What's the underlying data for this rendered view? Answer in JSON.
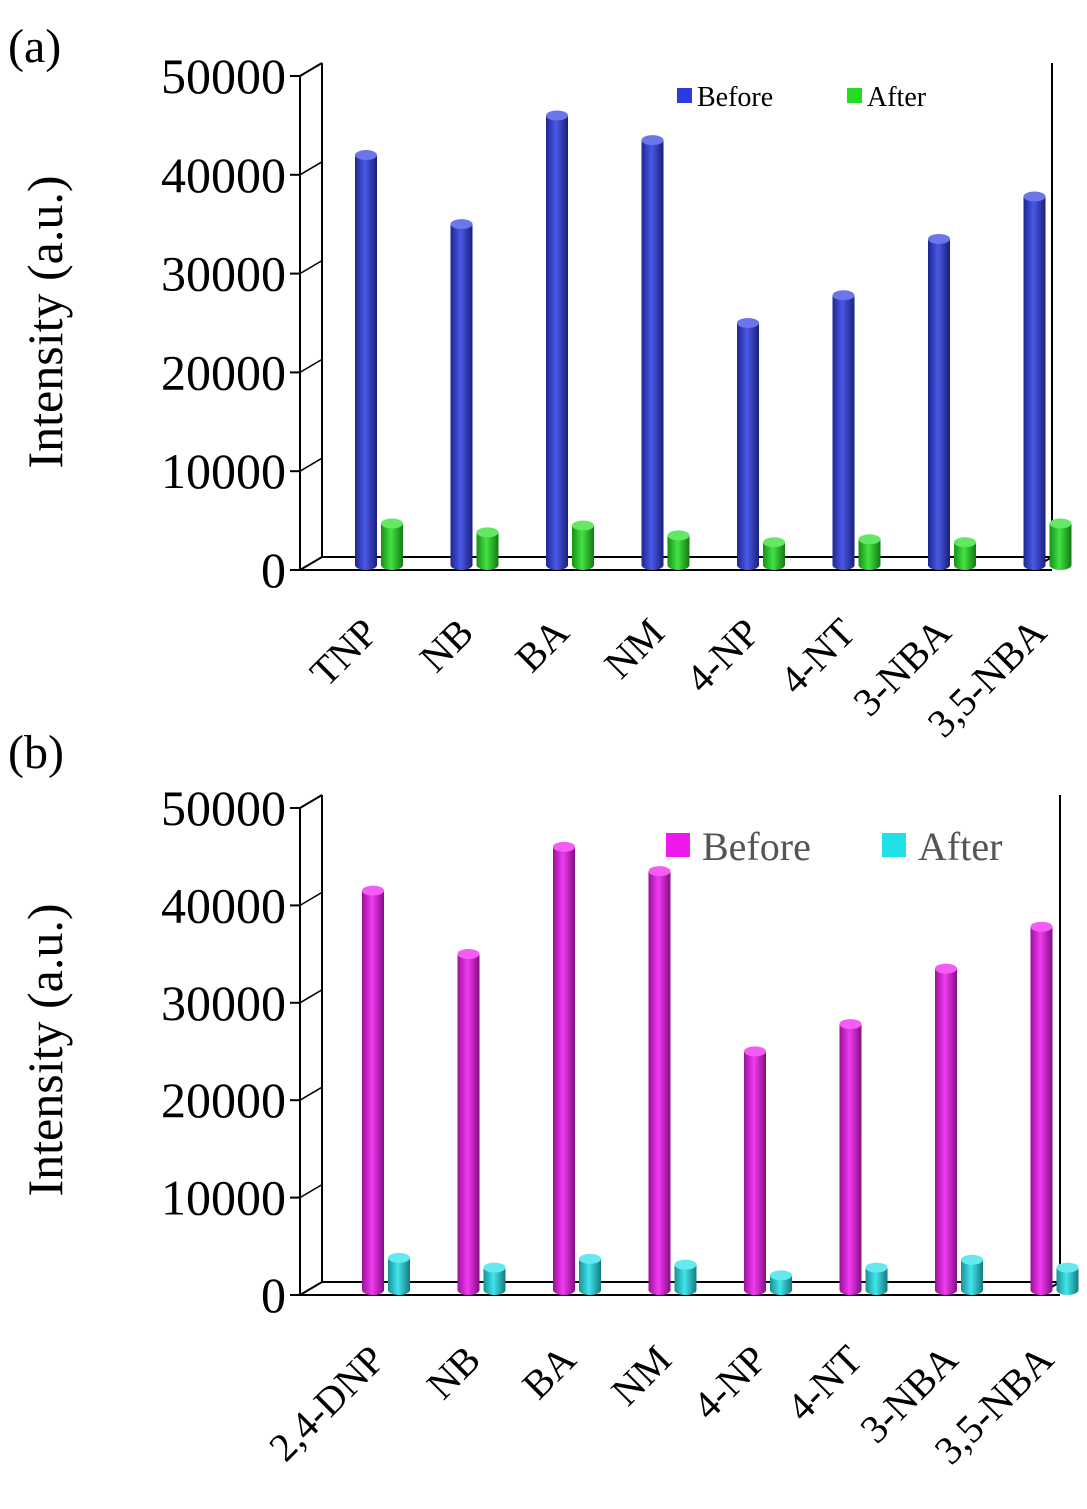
{
  "chart_data": [
    {
      "type": "bar",
      "panel_label": "(a)",
      "ylabel": "Intensity (a.u.)",
      "ylim": [
        0,
        50000
      ],
      "yticks": [
        "0",
        "10000",
        "20000",
        "30000",
        "40000",
        "50000"
      ],
      "categories": [
        "TNP",
        "NB",
        "BA",
        "NM",
        "4-NP",
        "4-NT",
        "3-NBA",
        "3,5-NBA"
      ],
      "series": [
        {
          "name": "Before",
          "color": "#2b3be0",
          "values": [
            41500,
            34500,
            45500,
            43000,
            24500,
            27300,
            33000,
            37300
          ]
        },
        {
          "name": "After",
          "color": "#22dd22",
          "values": [
            4200,
            3300,
            4000,
            3000,
            2300,
            2600,
            2300,
            4200
          ]
        }
      ],
      "legend": "top-right"
    },
    {
      "type": "bar",
      "panel_label": "(b)",
      "ylabel": "Intensity (a.u.)",
      "ylim": [
        0,
        50000
      ],
      "yticks": [
        "0",
        "10000",
        "20000",
        "30000",
        "40000",
        "50000"
      ],
      "categories": [
        "2,4-DNP",
        "NB",
        "BA",
        "NM",
        "4-NP",
        "4-NT",
        "3-NBA",
        "3,5-NBA"
      ],
      "series": [
        {
          "name": "Before",
          "color": "#ee18ee",
          "values": [
            41000,
            34500,
            45500,
            43000,
            24500,
            27300,
            33000,
            37300
          ]
        },
        {
          "name": "After",
          "color": "#22e0e8",
          "values": [
            3300,
            2300,
            3200,
            2600,
            1500,
            2300,
            3100,
            2300
          ]
        }
      ],
      "legend": "top-right"
    }
  ]
}
